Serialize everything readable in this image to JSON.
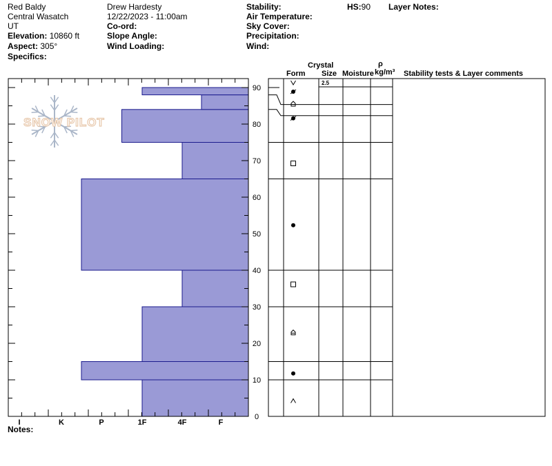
{
  "header": {
    "location": [
      "Red Baldy",
      "Central Wasatch",
      "UT"
    ],
    "elevation_label": "Elevation:",
    "elevation_value": "10860 ft",
    "aspect_label": "Aspect:",
    "aspect_value": "305°",
    "specifics_label": "Specifics:",
    "observer": "Drew Hardesty",
    "datetime": "12/22/2023 - 11:00am",
    "coord_label": "Co-ord:",
    "slope_label": "Slope Angle:",
    "wind_loading_label": "Wind Loading:",
    "stability_label": "Stability:",
    "air_temp_label": "Air Temperature:",
    "sky_cover_label": "Sky Cover:",
    "precip_label": "Precipitation:",
    "wind_label": "Wind:",
    "hs_label": "HS:",
    "hs_value": "90",
    "layer_notes_label": "Layer Notes:"
  },
  "columns": {
    "crystal": "Crystal",
    "form": "Form",
    "size": "Size",
    "moisture": "Moisture",
    "rho": "ρ",
    "density_unit": "kg/m³",
    "stability": "Stability tests & Layer comments"
  },
  "logo_text": "SNOW PILOT",
  "notes_label": "Notes:",
  "colors": {
    "hardness_fill": "#9a9ad6",
    "hardness_stroke": "#1a1a8c",
    "logo": "#e8c9ad",
    "flake": "#aab6c8"
  },
  "chart_data": {
    "type": "bar",
    "orientation": "horizontal",
    "x_ticks": [
      "I",
      "K",
      "P",
      "1F",
      "4F",
      "F"
    ],
    "y_ticks": [
      0,
      10,
      20,
      30,
      40,
      50,
      60,
      70,
      80,
      90
    ],
    "ylim": [
      0,
      92
    ],
    "layers": [
      {
        "bottom": 0,
        "top": 10,
        "hardness": "1F",
        "form": "facet-rounding"
      },
      {
        "bottom": 10,
        "top": 15,
        "hardness": "K-P",
        "form": "rounds"
      },
      {
        "bottom": 15,
        "top": 30,
        "hardness": "1F",
        "form": "depth-hoar"
      },
      {
        "bottom": 30,
        "top": 40,
        "hardness": "4F",
        "form": "facets"
      },
      {
        "bottom": 40,
        "top": 65,
        "hardness": "K-P",
        "form": "rounds"
      },
      {
        "bottom": 65,
        "top": 75,
        "hardness": "4F",
        "form": "facets"
      },
      {
        "bottom": 75,
        "top": 84,
        "hardness": "P-1F",
        "form": "decomposing"
      },
      {
        "bottom": 84,
        "top": 88,
        "hardness": "4F-F",
        "form": "depth-hoar"
      },
      {
        "bottom": 88,
        "top": 90,
        "hardness": "1F",
        "form": "decomposing"
      }
    ],
    "surface": {
      "form": "surface-hoar",
      "size": "2.5"
    }
  }
}
